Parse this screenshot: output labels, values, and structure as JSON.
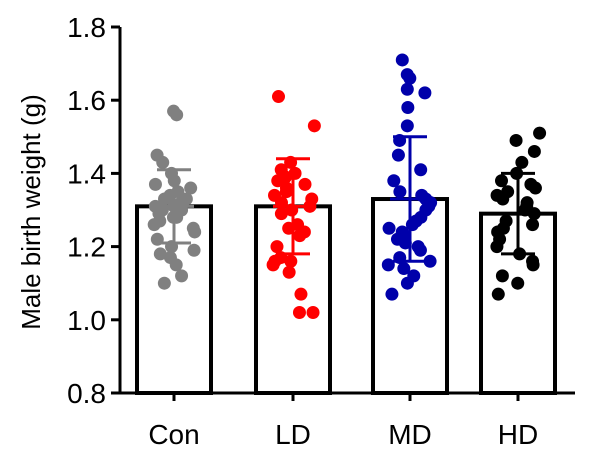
{
  "chart_data": {
    "type": "bar",
    "title": "",
    "xlabel": "",
    "ylabel": "Male birth weight (g)",
    "ylim": [
      0.8,
      1.8
    ],
    "yticks": [
      "0.8",
      "1.0",
      "1.2",
      "1.4",
      "1.6",
      "1.8"
    ],
    "categories": [
      "Con",
      "LD",
      "MD",
      "HD"
    ],
    "series": [
      {
        "category": "Con",
        "color": "#808080",
        "mean": 1.31,
        "sd": 0.1,
        "points": [
          1.57,
          1.56,
          1.45,
          1.43,
          1.4,
          1.38,
          1.37,
          1.36,
          1.35,
          1.34,
          1.33,
          1.33,
          1.32,
          1.31,
          1.31,
          1.3,
          1.3,
          1.29,
          1.28,
          1.28,
          1.27,
          1.26,
          1.25,
          1.24,
          1.22,
          1.2,
          1.19,
          1.18,
          1.17,
          1.15,
          1.12,
          1.1
        ]
      },
      {
        "category": "LD",
        "color": "#ff0000",
        "mean": 1.31,
        "sd": 0.13,
        "points": [
          1.61,
          1.53,
          1.43,
          1.41,
          1.4,
          1.39,
          1.38,
          1.37,
          1.36,
          1.35,
          1.34,
          1.33,
          1.32,
          1.31,
          1.3,
          1.29,
          1.26,
          1.25,
          1.24,
          1.23,
          1.2,
          1.17,
          1.16,
          1.16,
          1.15,
          1.13,
          1.07,
          1.02,
          1.02
        ]
      },
      {
        "category": "MD",
        "color": "#0000aa",
        "mean": 1.33,
        "sd": 0.17,
        "points": [
          1.71,
          1.67,
          1.66,
          1.63,
          1.62,
          1.58,
          1.53,
          1.49,
          1.45,
          1.41,
          1.38,
          1.35,
          1.34,
          1.33,
          1.32,
          1.31,
          1.3,
          1.28,
          1.27,
          1.26,
          1.25,
          1.24,
          1.23,
          1.22,
          1.21,
          1.2,
          1.19,
          1.17,
          1.16,
          1.15,
          1.14,
          1.12,
          1.1,
          1.07
        ]
      },
      {
        "category": "HD",
        "color": "#000000",
        "mean": 1.29,
        "sd": 0.11,
        "points": [
          1.51,
          1.49,
          1.46,
          1.43,
          1.4,
          1.38,
          1.37,
          1.36,
          1.35,
          1.34,
          1.33,
          1.32,
          1.31,
          1.3,
          1.29,
          1.27,
          1.26,
          1.25,
          1.24,
          1.22,
          1.2,
          1.18,
          1.16,
          1.15,
          1.12,
          1.1,
          1.07
        ]
      }
    ],
    "grid": false,
    "legend": "none"
  },
  "footer": {
    "panel_label_fragment": ""
  }
}
